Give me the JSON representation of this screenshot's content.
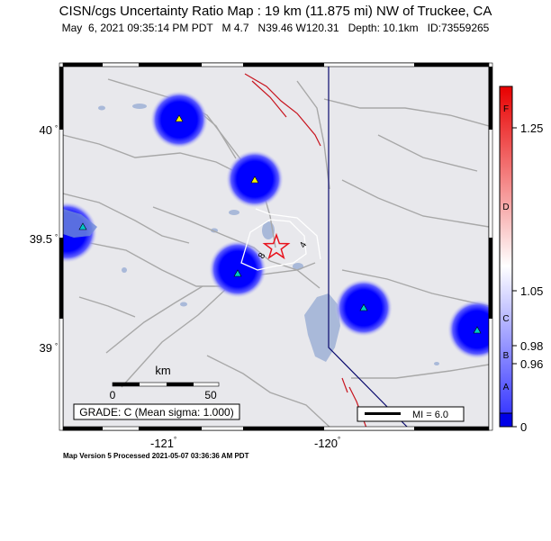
{
  "title": "CISN/cgs Uncertainty Ratio Map : 19 km (11.875 mi) NW of Truckee, CA",
  "subtitle": "May  6, 2021 09:35:14 PM PDT   M 4.7   N39.46 W120.31   Depth: 10.1km   ID:73559265",
  "map": {
    "lat_ticks": [
      "40",
      "39.5",
      "39"
    ],
    "lon_ticks": [
      "-121",
      "-120"
    ],
    "scale_title": "km",
    "scale_start": "0",
    "scale_end": "50",
    "grade_box": "GRADE: C (Mean sigma: 1.000)",
    "mi_legend": "MI = 6.0",
    "contour_labels": [
      "8",
      "4"
    ]
  },
  "colorbar": {
    "letters": [
      "F",
      "D",
      "C",
      "B",
      "A"
    ],
    "values": [
      "1.25",
      "1.05",
      "0.98",
      "0.96",
      "0"
    ],
    "colors": {
      "top": "#e80000",
      "mid": "#ffffff",
      "bottom": "#0000ff"
    }
  },
  "stations": [
    {
      "color": "#f2f200"
    },
    {
      "color": "#f2f200"
    },
    {
      "color": "#00c8c8"
    },
    {
      "color": "#00c8c8"
    },
    {
      "color": "#00c8c8"
    },
    {
      "color": "#00c8c8"
    }
  ],
  "footer": "Map Version 5 Processed 2021-05-07 03:36:36 AM PDT",
  "colors": {
    "land": "#e8e8ec",
    "lake": "#a9b9d9",
    "road": "#a8a8a8",
    "fault": "#c8141e",
    "border": "#0a0a6e",
    "epicenter": "#e8141e"
  }
}
